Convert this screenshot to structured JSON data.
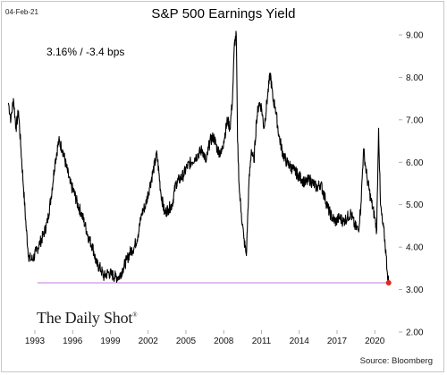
{
  "date_stamp": "04-Feb-21",
  "readout": "3.16%  /  -3.4 bps",
  "brand": "The Daily Shot",
  "brand_mark": "®",
  "source": "Source: Bloomberg",
  "chart_data": {
    "type": "line",
    "title": "S&P 500 Earnings Yield",
    "xlabel": "",
    "ylabel": "",
    "xlim": [
      1990.8,
      2021.9
    ],
    "ylim": [
      2.0,
      9.0
    ],
    "x_ticks": [
      "1993",
      "1996",
      "1999",
      "2002",
      "2005",
      "2008",
      "2011",
      "2014",
      "2017",
      "2020"
    ],
    "y_ticks": [
      "2.00",
      "3.00",
      "4.00",
      "5.00",
      "6.00",
      "7.00",
      "8.00",
      "9.00"
    ],
    "reference_line": {
      "y": 3.16,
      "x_start": 1993.2,
      "color": "#c678dd"
    },
    "last_point": {
      "x": 2021.1,
      "y": 3.16,
      "color": "#e0281e"
    },
    "line_color": "#000000",
    "series": [
      {
        "x": [
          1990.9,
          1991.1,
          1991.3,
          1991.5,
          1991.7,
          1991.9,
          1992.1,
          1992.3,
          1992.5,
          1992.7,
          1992.9,
          1993.1,
          1993.4,
          1993.7,
          1994.0,
          1994.3,
          1994.6,
          1994.9,
          1995.2,
          1995.5,
          1995.8,
          1996.1,
          1996.4,
          1996.7,
          1997.0,
          1997.3,
          1997.6,
          1997.9,
          1998.2,
          1998.5,
          1998.8,
          1999.1,
          1999.4,
          1999.7,
          2000.0,
          2000.3,
          2000.6,
          2000.9,
          2001.2,
          2001.5,
          2001.8,
          2002.1,
          2002.4,
          2002.7,
          2003.0,
          2003.3,
          2003.6,
          2003.9,
          2004.2,
          2004.5,
          2004.8,
          2005.1,
          2005.4,
          2005.7,
          2006.0,
          2006.3,
          2006.6,
          2006.9,
          2007.2,
          2007.5,
          2007.8,
          2008.0,
          2008.3,
          2008.5,
          2008.7,
          2008.85,
          2009.0,
          2009.1,
          2009.25,
          2009.4,
          2009.6,
          2009.8,
          2010.0,
          2010.2,
          2010.4,
          2010.6,
          2010.8,
          2011.0,
          2011.2,
          2011.5,
          2011.7,
          2011.9,
          2012.1,
          2012.4,
          2012.7,
          2013.0,
          2013.3,
          2013.6,
          2013.9,
          2014.2,
          2014.5,
          2014.8,
          2015.1,
          2015.4,
          2015.7,
          2016.0,
          2016.3,
          2016.6,
          2016.9,
          2017.2,
          2017.5,
          2017.8,
          2018.1,
          2018.4,
          2018.7,
          2018.9,
          2019.1,
          2019.4,
          2019.7,
          2020.0,
          2020.15,
          2020.3,
          2020.45,
          2020.6,
          2020.75,
          2020.9,
          2021.0,
          2021.1
        ],
        "y": [
          7.4,
          7.0,
          7.5,
          6.8,
          7.2,
          6.3,
          5.4,
          4.5,
          3.8,
          3.7,
          3.75,
          3.9,
          4.1,
          4.3,
          4.6,
          5.2,
          6.0,
          6.5,
          6.3,
          5.9,
          5.5,
          5.3,
          5.0,
          4.8,
          4.5,
          4.2,
          4.0,
          3.6,
          3.5,
          3.3,
          3.4,
          3.35,
          3.3,
          3.3,
          3.5,
          3.7,
          3.9,
          4.0,
          4.3,
          4.8,
          5.0,
          5.4,
          5.8,
          6.2,
          5.3,
          4.8,
          4.9,
          5.0,
          5.5,
          5.6,
          5.7,
          5.9,
          6.0,
          6.1,
          6.2,
          6.3,
          6.0,
          6.5,
          6.6,
          6.3,
          6.2,
          6.5,
          7.0,
          6.8,
          7.5,
          8.8,
          9.0,
          6.5,
          5.3,
          4.8,
          4.2,
          3.8,
          5.5,
          6.3,
          6.0,
          7.0,
          7.4,
          7.3,
          6.8,
          7.6,
          8.1,
          7.5,
          7.3,
          6.6,
          6.2,
          6.0,
          5.9,
          5.8,
          5.7,
          5.6,
          5.5,
          5.6,
          5.5,
          5.4,
          5.5,
          5.2,
          4.9,
          4.7,
          4.6,
          4.7,
          4.6,
          4.7,
          4.8,
          4.5,
          4.4,
          5.0,
          6.3,
          5.6,
          5.1,
          4.7,
          4.4,
          6.8,
          5.0,
          4.6,
          4.3,
          3.8,
          3.4,
          3.16
        ]
      }
    ]
  }
}
